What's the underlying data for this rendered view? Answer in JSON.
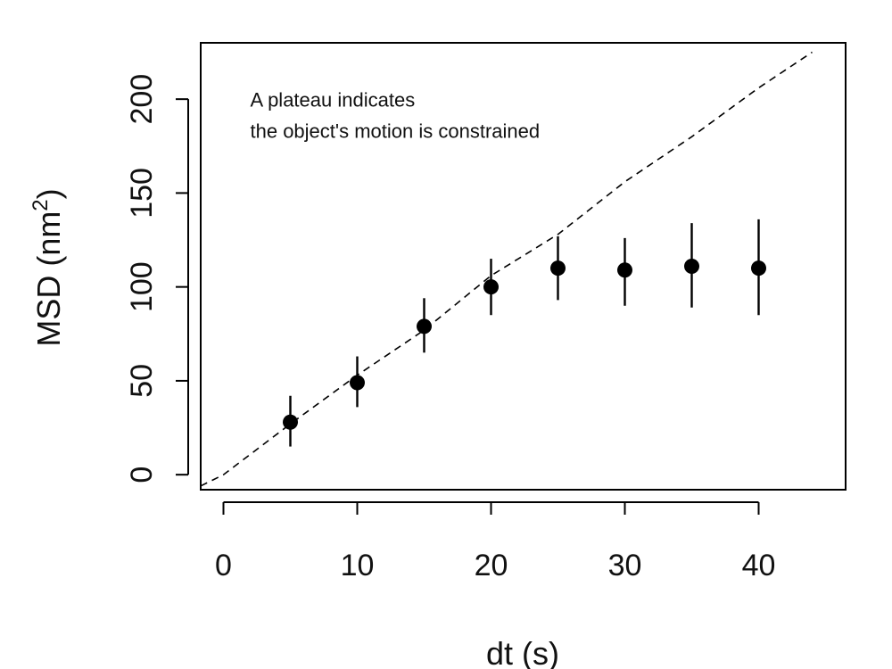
{
  "chart_data": {
    "type": "scatter",
    "xlabel": "dt (s)",
    "ylabel_main": "MSD (nm",
    "ylabel_sup": "2",
    "ylabel_close": ")",
    "xlim": [
      -1.7,
      46.5
    ],
    "ylim": [
      -8,
      230
    ],
    "xticks": [
      0,
      10,
      20,
      30,
      40
    ],
    "xtick_labels": [
      "0",
      "10",
      "20",
      "30",
      "40"
    ],
    "yticks": [
      0,
      50,
      100,
      150,
      200
    ],
    "ytick_labels": [
      "0",
      "50",
      "100",
      "150",
      "200"
    ],
    "grid": false,
    "annotation": {
      "lines": [
        "A plateau  indicates",
        "the object's motion is constrained"
      ],
      "x": 2,
      "y": 196
    },
    "points": [
      {
        "x": 5,
        "y": 28,
        "ylow": 15,
        "yhigh": 42
      },
      {
        "x": 10,
        "y": 49,
        "ylow": 36,
        "yhigh": 63
      },
      {
        "x": 15,
        "y": 79,
        "ylow": 65,
        "yhigh": 94
      },
      {
        "x": 20,
        "y": 100,
        "ylow": 85,
        "yhigh": 115
      },
      {
        "x": 25,
        "y": 110,
        "ylow": 93,
        "yhigh": 127
      },
      {
        "x": 30,
        "y": 109,
        "ylow": 90,
        "yhigh": 126
      },
      {
        "x": 35,
        "y": 111,
        "ylow": 89,
        "yhigh": 134
      },
      {
        "x": 40,
        "y": 110,
        "ylow": 85,
        "yhigh": 136
      }
    ],
    "reference_line": {
      "style": "dashed",
      "x": [
        -1.7,
        0,
        5,
        10,
        15,
        20,
        25,
        30,
        35,
        40,
        44
      ],
      "y": [
        -6,
        0,
        27,
        53,
        77,
        106,
        128,
        156,
        180,
        206,
        225
      ]
    },
    "colors": {
      "points": "#000000",
      "line": "#000000",
      "axis": "#000000"
    }
  }
}
